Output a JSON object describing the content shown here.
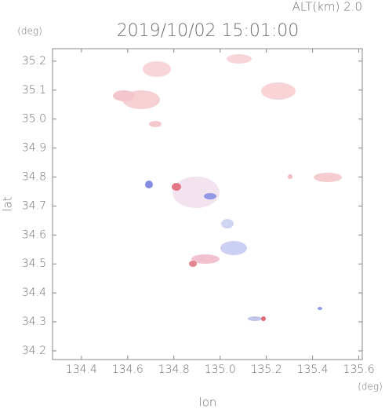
{
  "chart_data": {
    "type": "map",
    "title": "2019/10/02 15:01:00",
    "subtitle": "ALT(km) 2.0",
    "y_unit": "(deg)",
    "x_unit": "(deg)",
    "x_label": "lon",
    "y_label": "lat",
    "xlim": [
      134.275,
      135.615
    ],
    "ylim": [
      34.17,
      35.243
    ],
    "xticks": [
      134.4,
      134.6,
      134.8,
      {
        "value": 135.0,
        "label": "135.0"
      },
      135.2,
      135.4,
      135.6
    ],
    "yticks": [
      34.2,
      34.3,
      34.4,
      34.5,
      34.6,
      34.7,
      34.8,
      34.9,
      {
        "value": 35.0,
        "label": "35.0"
      },
      35.1,
      35.2
    ]
  }
}
